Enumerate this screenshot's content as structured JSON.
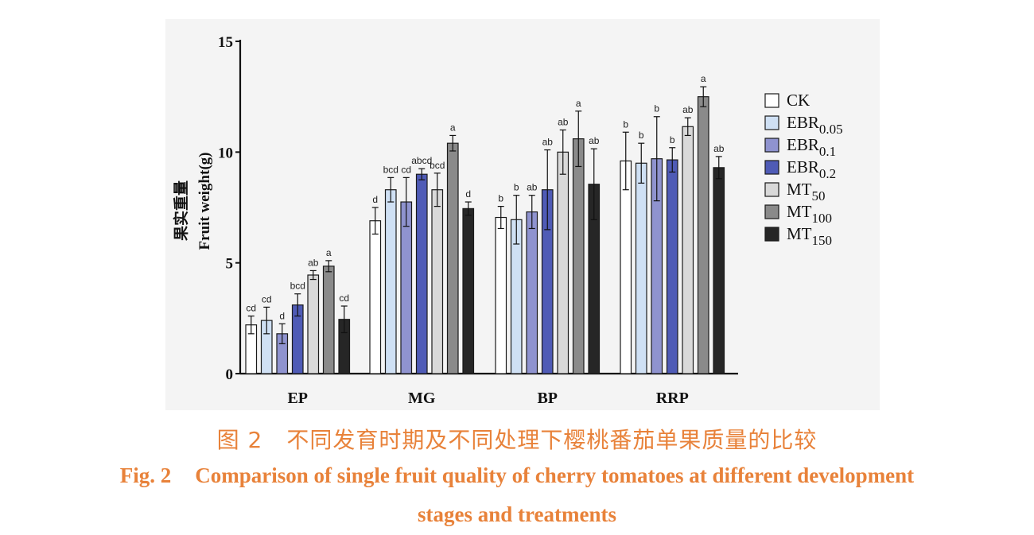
{
  "chart_data": {
    "type": "bar",
    "categories": [
      "EP",
      "MG",
      "BP",
      "RRP"
    ],
    "ylabel_cn": "果实重量",
    "ylabel": "Fruit weight(g)",
    "ylim": [
      0,
      15
    ],
    "yticks": [
      "0",
      "5",
      "10",
      "15"
    ],
    "legend_position": "right",
    "series": [
      {
        "name": "CK",
        "name_base": "CK",
        "name_sub": "",
        "color": "#ffffff",
        "values": [
          2.2,
          6.9,
          7.05,
          9.6
        ],
        "errors": [
          0.4,
          0.6,
          0.5,
          1.3
        ],
        "letters": [
          "cd",
          "d",
          "b",
          "b"
        ]
      },
      {
        "name": "EBR0.05",
        "name_base": "EBR",
        "name_sub": "0.05",
        "color": "#cfe0f4",
        "values": [
          2.4,
          8.3,
          6.95,
          9.5
        ],
        "errors": [
          0.6,
          0.55,
          1.1,
          0.9
        ],
        "letters": [
          "cd",
          "bcd",
          "b",
          "b"
        ]
      },
      {
        "name": "EBR0.1",
        "name_base": "EBR",
        "name_sub": "0.1",
        "color": "#8f93cf",
        "values": [
          1.8,
          7.75,
          7.3,
          9.7
        ],
        "errors": [
          0.45,
          1.1,
          0.75,
          1.9
        ],
        "letters": [
          "d",
          "cd",
          "ab",
          "b"
        ]
      },
      {
        "name": "EBR0.2",
        "name_base": "EBR",
        "name_sub": "0.2",
        "color": "#4f5bb6",
        "values": [
          3.1,
          9.0,
          8.3,
          9.65
        ],
        "errors": [
          0.5,
          0.25,
          1.8,
          0.55
        ],
        "letters": [
          "bcd",
          "abcd",
          "ab",
          "b"
        ]
      },
      {
        "name": "MT50",
        "name_base": "MT",
        "name_sub": "50",
        "color": "#d9d9d9",
        "values": [
          4.45,
          8.3,
          10.0,
          11.15
        ],
        "errors": [
          0.2,
          0.75,
          1.0,
          0.4
        ],
        "letters": [
          "ab",
          "bcd",
          "ab",
          "ab"
        ]
      },
      {
        "name": "MT100",
        "name_base": "MT",
        "name_sub": "100",
        "color": "#8a8a8a",
        "values": [
          4.85,
          10.4,
          10.6,
          12.5
        ],
        "errors": [
          0.25,
          0.35,
          1.25,
          0.45
        ],
        "letters": [
          "a",
          "a",
          "a",
          "a"
        ]
      },
      {
        "name": "MT150",
        "name_base": "MT",
        "name_sub": "150",
        "color": "#262626",
        "values": [
          2.45,
          7.45,
          8.55,
          9.3
        ],
        "errors": [
          0.6,
          0.3,
          1.6,
          0.5
        ],
        "letters": [
          "cd",
          "d",
          "ab",
          "ab"
        ]
      }
    ]
  },
  "caption": {
    "cn_label": "图 2",
    "cn_text": "不同发育时期及不同处理下樱桃番茄单果质量的比较",
    "en_label": "Fig. 2",
    "en_line1": "Comparison of single fruit quality of cherry tomatoes at different development",
    "en_line2": "stages and treatments"
  }
}
